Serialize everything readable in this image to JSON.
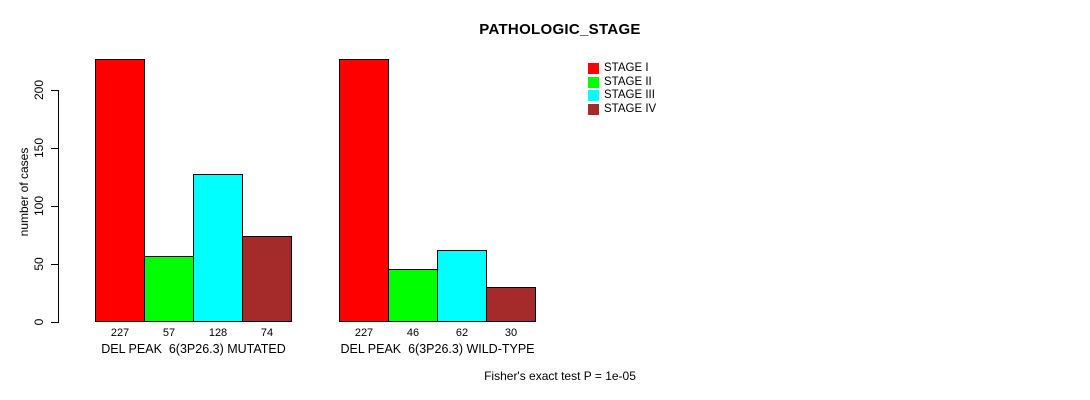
{
  "chart_data": {
    "type": "bar",
    "title": "PATHOLOGIC_STAGE",
    "ylabel": "number of cases",
    "xlabel": "",
    "ylim": [
      0,
      235
    ],
    "yticks": [
      0,
      50,
      100,
      150,
      200
    ],
    "grid": false,
    "legend_position": "top-right",
    "categories": [
      "DEL PEAK  6(3P26.3) MUTATED",
      "DEL PEAK  6(3P26.3) WILD-TYPE"
    ],
    "series": [
      {
        "name": "STAGE I",
        "color": "#FF0000",
        "values": [
          227,
          227
        ]
      },
      {
        "name": "STAGE II",
        "color": "#00FF00",
        "values": [
          57,
          46
        ]
      },
      {
        "name": "STAGE III",
        "color": "#00FFFF",
        "values": [
          128,
          62
        ]
      },
      {
        "name": "STAGE IV",
        "color": "#A52A2A",
        "values": [
          74,
          30
        ]
      }
    ],
    "bar_value_labels": [
      [
        "227",
        "57",
        "128",
        "74"
      ],
      [
        "227",
        "46",
        "62",
        "30"
      ]
    ],
    "annotation": "Fisher's exact test P = 1e-05"
  },
  "colors": {
    "background": "#FFFFFF",
    "axis": "#000000",
    "text": "#000000",
    "bar_border": "#000000"
  }
}
